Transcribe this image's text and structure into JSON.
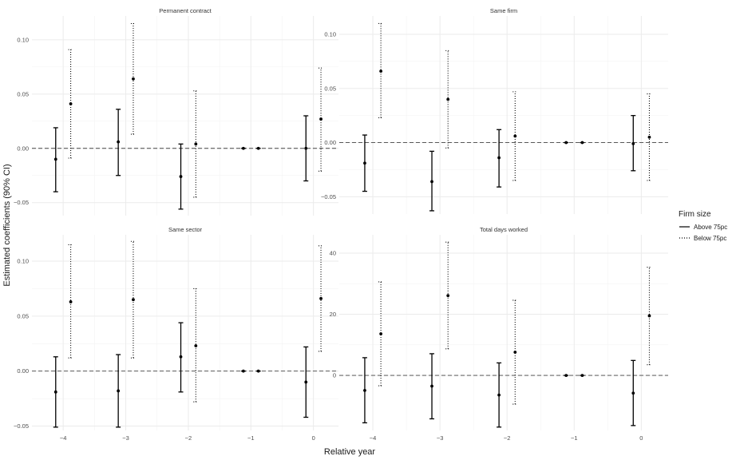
{
  "chart_data": {
    "type": "errorbar",
    "xlabel": "Relative year",
    "ylabel": "Estimated coefficients (90% CI)",
    "legend": {
      "title": "Firm size",
      "position": "right",
      "entries": [
        {
          "name": "Above 75pc",
          "linestyle": "solid"
        },
        {
          "name": "Below 75pc",
          "linestyle": "dotted"
        }
      ]
    },
    "x_ticks": [
      -4,
      -3,
      -2,
      -1,
      0
    ],
    "x_tick_labels": [
      "−4",
      "−3",
      "−2",
      "−1",
      "0"
    ],
    "panels": [
      {
        "title": "Permanent contract",
        "ylim": [
          -0.062,
          0.122
        ],
        "y_ticks": [
          -0.05,
          0.0,
          0.05,
          0.1
        ],
        "y_tick_labels": [
          "−0.05",
          "0.00",
          "0.05",
          "0.10"
        ],
        "series": [
          {
            "name": "Above 75pc",
            "x": [
              -4,
              -3,
              -2,
              -1,
              0
            ],
            "estimate": [
              -0.01,
              0.006,
              -0.026,
              0.0,
              0.0
            ],
            "lower": [
              -0.04,
              -0.025,
              -0.056,
              0.0,
              -0.03
            ],
            "upper": [
              0.019,
              0.036,
              0.004,
              0.0,
              0.03
            ]
          },
          {
            "name": "Below 75pc",
            "x": [
              -4,
              -3,
              -2,
              -1,
              0
            ],
            "estimate": [
              0.041,
              0.064,
              0.004,
              0.0,
              0.027
            ],
            "lower": [
              -0.009,
              0.013,
              -0.045,
              0.0,
              -0.021
            ],
            "upper": [
              0.091,
              0.115,
              0.053,
              0.0,
              0.074
            ]
          }
        ]
      },
      {
        "title": "Same firm",
        "ylim": [
          -0.066,
          0.117
        ],
        "y_ticks": [
          -0.05,
          0.0,
          0.05,
          0.1
        ],
        "y_tick_labels": [
          "−0.05",
          "0.00",
          "0.05",
          "0.10"
        ],
        "series": [
          {
            "name": "Above 75pc",
            "x": [
              -4,
              -3,
              -2,
              -1,
              0
            ],
            "estimate": [
              -0.019,
              -0.036,
              -0.014,
              0.0,
              -0.001
            ],
            "lower": [
              -0.045,
              -0.063,
              -0.041,
              0.0,
              -0.026
            ],
            "upper": [
              0.007,
              -0.008,
              0.012,
              0.0,
              0.025
            ]
          },
          {
            "name": "Below 75pc",
            "x": [
              -4,
              -3,
              -2,
              -1,
              0
            ],
            "estimate": [
              0.066,
              0.04,
              0.006,
              0.0,
              0.005
            ],
            "lower": [
              0.023,
              -0.005,
              -0.035,
              0.0,
              -0.035
            ],
            "upper": [
              0.11,
              0.085,
              0.047,
              0.0,
              0.045
            ]
          }
        ]
      },
      {
        "title": "Same sector",
        "ylim": [
          -0.054,
          0.124
        ],
        "y_ticks": [
          -0.05,
          0.0,
          0.05,
          0.1
        ],
        "y_tick_labels": [
          "−0.05",
          "0.00",
          "0.05",
          "0.10"
        ],
        "series": [
          {
            "name": "Above 75pc",
            "x": [
              -4,
              -3,
              -2,
              -1,
              0
            ],
            "estimate": [
              -0.019,
              -0.018,
              0.013,
              0.0,
              -0.01
            ],
            "lower": [
              -0.051,
              -0.051,
              -0.019,
              0.0,
              -0.042
            ],
            "upper": [
              0.013,
              0.015,
              0.044,
              0.0,
              0.022
            ]
          },
          {
            "name": "Below 75pc",
            "x": [
              -4,
              -3,
              -2,
              -1,
              0
            ],
            "estimate": [
              0.063,
              0.065,
              0.023,
              0.0,
              0.066
            ],
            "lower": [
              0.012,
              0.012,
              -0.028,
              0.0,
              0.018
            ],
            "upper": [
              0.115,
              0.118,
              0.075,
              0.0,
              0.114
            ]
          }
        ]
      },
      {
        "title": "Total days worked",
        "ylim": [
          -18.0,
          46.0
        ],
        "y_ticks": [
          0,
          20,
          40
        ],
        "y_tick_labels": [
          "0",
          "20",
          "40"
        ],
        "series": [
          {
            "name": "Above 75pc",
            "x": [
              -4,
              -3,
              -2,
              -1,
              0
            ],
            "estimate": [
              -4.9,
              -3.5,
              -6.4,
              0.0,
              -5.8
            ],
            "lower": [
              -15.5,
              -14.2,
              -16.9,
              0.0,
              -16.4
            ],
            "upper": [
              5.8,
              7.1,
              4.1,
              0.0,
              4.9
            ]
          },
          {
            "name": "Below 75pc",
            "x": [
              -4,
              -3,
              -2,
              -1,
              0
            ],
            "estimate": [
              13.6,
              26.1,
              7.6,
              0.0,
              19.5
            ],
            "lower": [
              -3.4,
              8.7,
              -9.4,
              0.0,
              3.5
            ],
            "upper": [
              30.6,
              43.6,
              24.6,
              0.0,
              35.4
            ]
          }
        ]
      }
    ]
  }
}
